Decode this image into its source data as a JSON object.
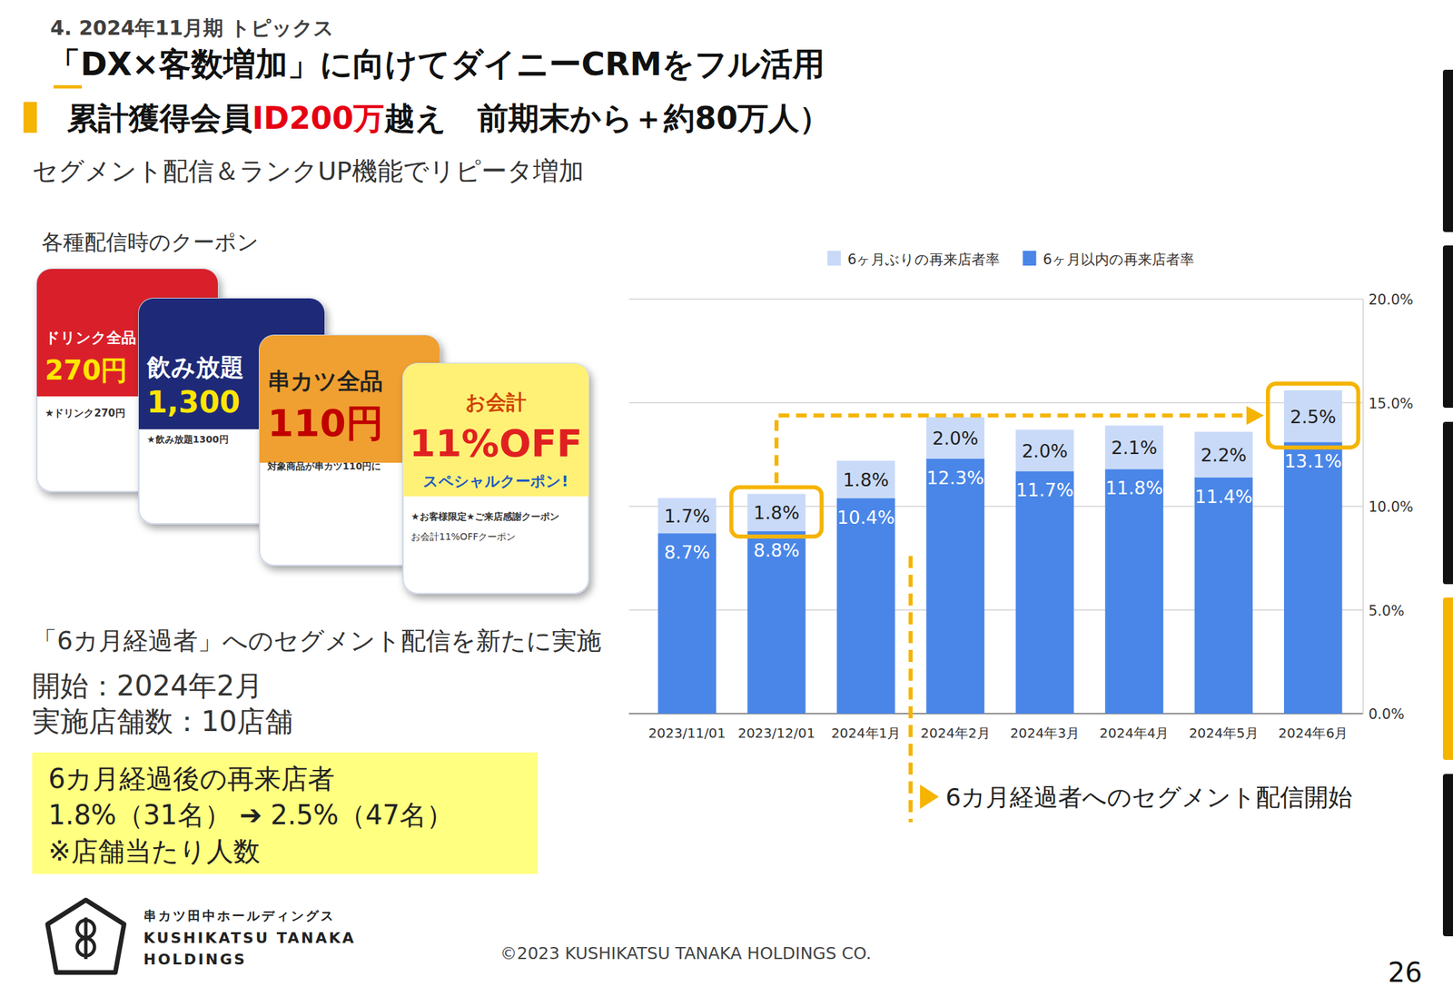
{
  "page": {
    "section": "4. 2024年11月期 トピックス",
    "title": "「DX×客数増加」に向けてダイニーCRMをフル活用",
    "subtitle_parts": [
      "累計獲得会員",
      "ID200万",
      "越え　前期末から＋約80万人）"
    ],
    "lead": "セグメント配信＆ランクUP機能でリピータ増加",
    "coupon_heading": "各種配信時のクーポン",
    "coupons": [
      {
        "lines": [
          "ドリンク全品",
          "270円"
        ],
        "captions": [
          "★ドリンク270円"
        ]
      },
      {
        "lines": [
          "飲み放題",
          "1,300"
        ],
        "captions": [
          "★飲み放題1300円"
        ]
      },
      {
        "lines": [
          "串カツ全品",
          "110円"
        ],
        "captions": [
          "対象商品が串カツ110円に"
        ]
      },
      {
        "lines": [
          "お会計",
          "11%OFF",
          "スペシャルクーポン!"
        ],
        "captions": [
          "★お客様限定★ご来店感謝クーポン",
          "お会計11%OFFクーポン"
        ]
      }
    ],
    "segment_note": "「6カ月経過者」へのセグメント配信を新たに実施",
    "start": "開始：2024年2月",
    "stores": "実施店舗数：10店舗",
    "result_box": [
      "6カ月経過後の再来店者",
      "1.8%（31名） ➔  2.5%（47名）",
      "※店舗当たり人数"
    ],
    "company": [
      "串カツ田中ホールディングス",
      "KUSHIKATSU TANAKA",
      "HOLDINGS"
    ],
    "copyright": "©2023 KUSHIKATSU TANAKA HOLDINGS CO.",
    "page_number": "26"
  },
  "chart_data": {
    "type": "bar",
    "stacked": true,
    "data_labels": true,
    "grid": true,
    "legend": "top",
    "categories": [
      "2023/11/01",
      "2023/12/01",
      "2024年1月",
      "2024年2月",
      "2024年3月",
      "2024年4月",
      "2024年5月",
      "2024年6月"
    ],
    "series": [
      {
        "name": "6ヶ月以内の再来店者率",
        "color": "#4a86e8",
        "values": [
          8.7,
          8.8,
          10.4,
          12.3,
          11.7,
          11.8,
          11.4,
          13.1
        ],
        "value_labels": [
          "8.7%",
          "8.8%",
          "10.4%",
          "12.3%",
          "11.7%",
          "11.8%",
          "11.4%",
          "13.1%"
        ]
      },
      {
        "name": "6ヶ月ぶりの再来店者率",
        "color": "#c9daf8",
        "values": [
          1.7,
          1.8,
          1.8,
          2.0,
          2.0,
          2.1,
          2.2,
          2.5
        ],
        "value_labels": [
          "1.7%",
          "1.8%",
          "1.8%",
          "2.0%",
          "2.0%",
          "2.1%",
          "2.2%",
          "2.5%"
        ]
      }
    ],
    "ylim": [
      0,
      20
    ],
    "yticks": [
      {
        "value": 0,
        "label": "0.0%"
      },
      {
        "value": 5,
        "label": "5.0%"
      },
      {
        "value": 10,
        "label": "10.0%"
      },
      {
        "value": 15,
        "label": "15.0%"
      },
      {
        "value": 20,
        "label": "20.0%"
      }
    ],
    "annotations": [
      "6カ月経過者へのセグメント配信開始"
    ]
  }
}
